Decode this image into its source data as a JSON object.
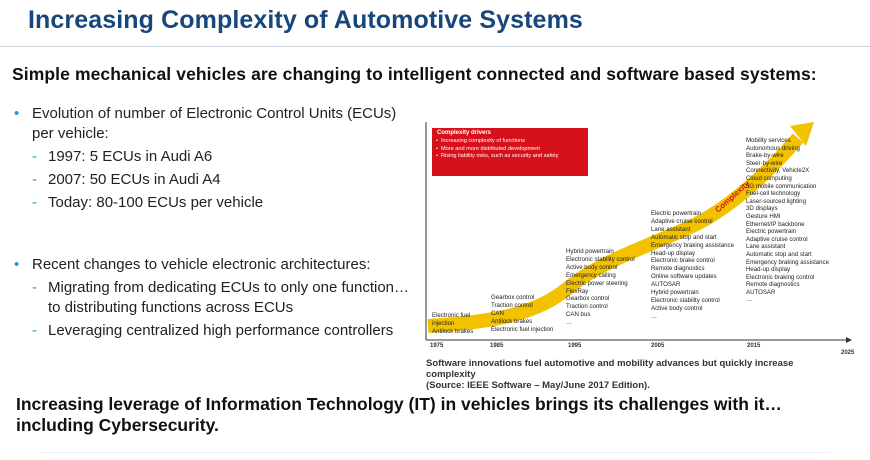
{
  "title": "Increasing Complexity of Automotive Systems",
  "subtitle": "Simple mechanical vehicles are changing to intelligent connected and software based systems:",
  "bullets": [
    {
      "text": "Evolution of number of Electronic Control Units (ECUs) per vehicle:",
      "subs": [
        "1997: 5 ECUs in Audi A6",
        "2007: 50 ECUs in Audi A4",
        "Today: 80-100 ECUs per vehicle"
      ]
    },
    {
      "text": "Recent changes to vehicle electronic architectures:",
      "subs": [
        "Migrating from dedicating ECUs to only one function… to distributing functions across ECUs",
        "Leveraging centralized high performance controllers"
      ]
    }
  ],
  "footer": "Increasing leverage of Information Technology (IT) in vehicles brings its challenges with it…including Cybersecurity.",
  "figure": {
    "drivers_title": "Complexity drivers",
    "drivers": [
      "Increasing complexity of functions",
      "More and more distributed development",
      "Rising liability risks, such as security and safety"
    ],
    "arrow_label": "Complexity",
    "years": [
      "1975",
      "1985",
      "1995",
      "2005",
      "2015",
      "2025"
    ],
    "era_1975": [
      "Electronic fuel",
      "injection",
      "Antilock brakes"
    ],
    "era_1985": [
      "Gearbox control",
      "Traction control",
      "CAN",
      "Antilock brakes",
      "Electronic fuel injection"
    ],
    "era_1995": [
      "Hybrid powertrain",
      "Electronic stability control",
      "Active body control",
      "Emergency calling",
      "Electric power steering",
      "FlexRay",
      "Gearbox control",
      "Traction control",
      "CAN bus",
      "…"
    ],
    "era_2005": [
      "Electric powertrain",
      "Adaptive cruise control",
      "Lane assistant",
      "Automatic stop and start",
      "Emergency braking assistance",
      "Head-up display",
      "Electronic brake control",
      "Remote diagnostics",
      "Online software updates",
      "AUTOSAR",
      "Hybrid powertrain",
      "Electronic stability control",
      "Active body control",
      "…"
    ],
    "era_2015": [
      "Mobility services",
      "Autonomous driving",
      "Brake-by-wire",
      "Steer-by-wire",
      "Connectivity, Vehicle2X",
      "Cloud computing",
      "5G mobile communication",
      "Fuel-cell technology",
      "Laser-sourced lighting",
      "3D displays",
      "Gesture HMI",
      "Ethernet/IP backbone",
      "Electric powertrain",
      "Adaptive cruise control",
      "Lane assistant",
      "Automatic stop and start",
      "Emergency braking assistance",
      "Head-up display",
      "Electronic braking control",
      "Remote diagnostics",
      "AUTOSAR",
      "…"
    ],
    "caption_line1": "Software innovations fuel automotive and mobility advances but quickly increase complexity",
    "caption_source": "(Source: IEEE Software – May/June 2017 Edition).",
    "colors": {
      "arrow": "#f2c200",
      "drivers_box": "#d7111b",
      "title": "#17477a",
      "bullet": "#1e9ad6"
    }
  }
}
